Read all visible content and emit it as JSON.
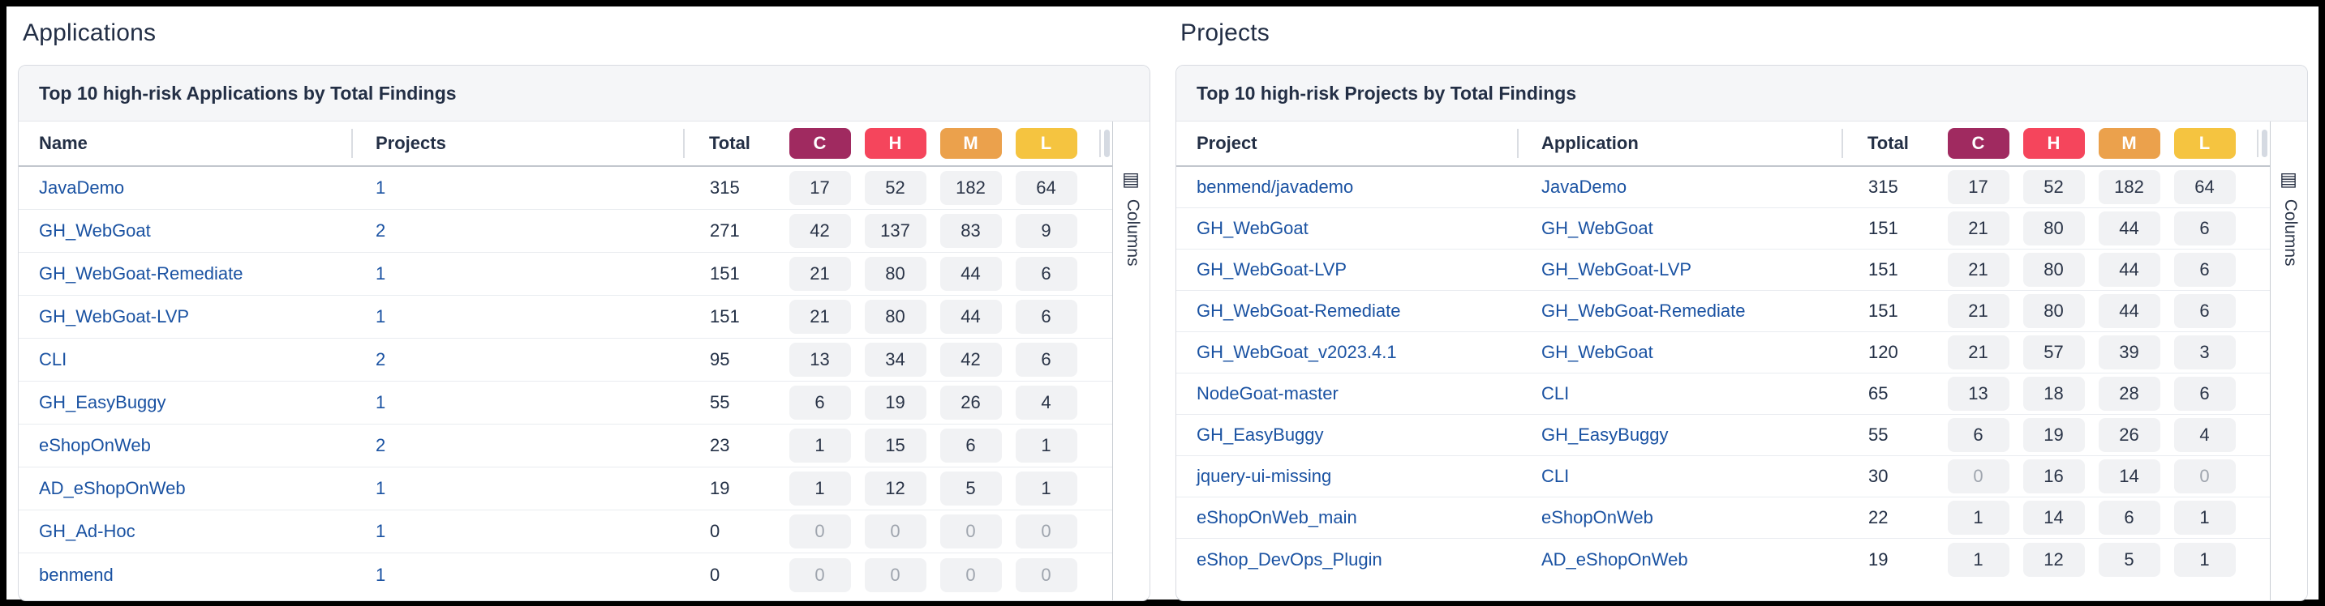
{
  "severity_colors": [
    "#A02A60",
    "#F5455C",
    "#EBA14C",
    "#F5C440"
  ],
  "link_color": "#1A52A2",
  "applications": {
    "section_title": "Applications",
    "panel_title": "Top 10 high-risk Applications by Total Findings",
    "headers": {
      "col1": "Name",
      "col2": "Projects",
      "total": "Total",
      "severities": [
        "C",
        "H",
        "M",
        "L"
      ]
    },
    "columns_button": "Columns",
    "rows": [
      [
        "JavaDemo",
        "1",
        "315",
        "17",
        "52",
        "182",
        "64"
      ],
      [
        "GH_WebGoat",
        "2",
        "271",
        "42",
        "137",
        "83",
        "9"
      ],
      [
        "GH_WebGoat-Remediate",
        "1",
        "151",
        "21",
        "80",
        "44",
        "6"
      ],
      [
        "GH_WebGoat-LVP",
        "1",
        "151",
        "21",
        "80",
        "44",
        "6"
      ],
      [
        "CLI",
        "2",
        "95",
        "13",
        "34",
        "42",
        "6"
      ],
      [
        "GH_EasyBuggy",
        "1",
        "55",
        "6",
        "19",
        "26",
        "4"
      ],
      [
        "eShopOnWeb",
        "2",
        "23",
        "1",
        "15",
        "6",
        "1"
      ],
      [
        "AD_eShopOnWeb",
        "1",
        "19",
        "1",
        "12",
        "5",
        "1"
      ],
      [
        "GH_Ad-Hoc",
        "1",
        "0",
        "0",
        "0",
        "0",
        "0"
      ],
      [
        "benmend",
        "1",
        "0",
        "0",
        "0",
        "0",
        "0"
      ]
    ]
  },
  "projects": {
    "section_title": "Projects",
    "panel_title": "Top 10 high-risk Projects by Total Findings",
    "headers": {
      "col1": "Project",
      "col2": "Application",
      "total": "Total",
      "severities": [
        "C",
        "H",
        "M",
        "L"
      ]
    },
    "columns_button": "Columns",
    "rows": [
      [
        "benmend/javademo",
        "JavaDemo",
        "315",
        "17",
        "52",
        "182",
        "64"
      ],
      [
        "GH_WebGoat",
        "GH_WebGoat",
        "151",
        "21",
        "80",
        "44",
        "6"
      ],
      [
        "GH_WebGoat-LVP",
        "GH_WebGoat-LVP",
        "151",
        "21",
        "80",
        "44",
        "6"
      ],
      [
        "GH_WebGoat-Remediate",
        "GH_WebGoat-Remediate",
        "151",
        "21",
        "80",
        "44",
        "6"
      ],
      [
        "GH_WebGoat_v2023.4.1",
        "GH_WebGoat",
        "120",
        "21",
        "57",
        "39",
        "3"
      ],
      [
        "NodeGoat-master",
        "CLI",
        "65",
        "13",
        "18",
        "28",
        "6"
      ],
      [
        "GH_EasyBuggy",
        "GH_EasyBuggy",
        "55",
        "6",
        "19",
        "26",
        "4"
      ],
      [
        "jquery-ui-missing",
        "CLI",
        "30",
        "0",
        "16",
        "14",
        "0"
      ],
      [
        "eShopOnWeb_main",
        "eShopOnWeb",
        "22",
        "1",
        "14",
        "6",
        "1"
      ],
      [
        "eShop_DevOps_Plugin",
        "AD_eShopOnWeb",
        "19",
        "1",
        "12",
        "5",
        "1"
      ]
    ]
  }
}
